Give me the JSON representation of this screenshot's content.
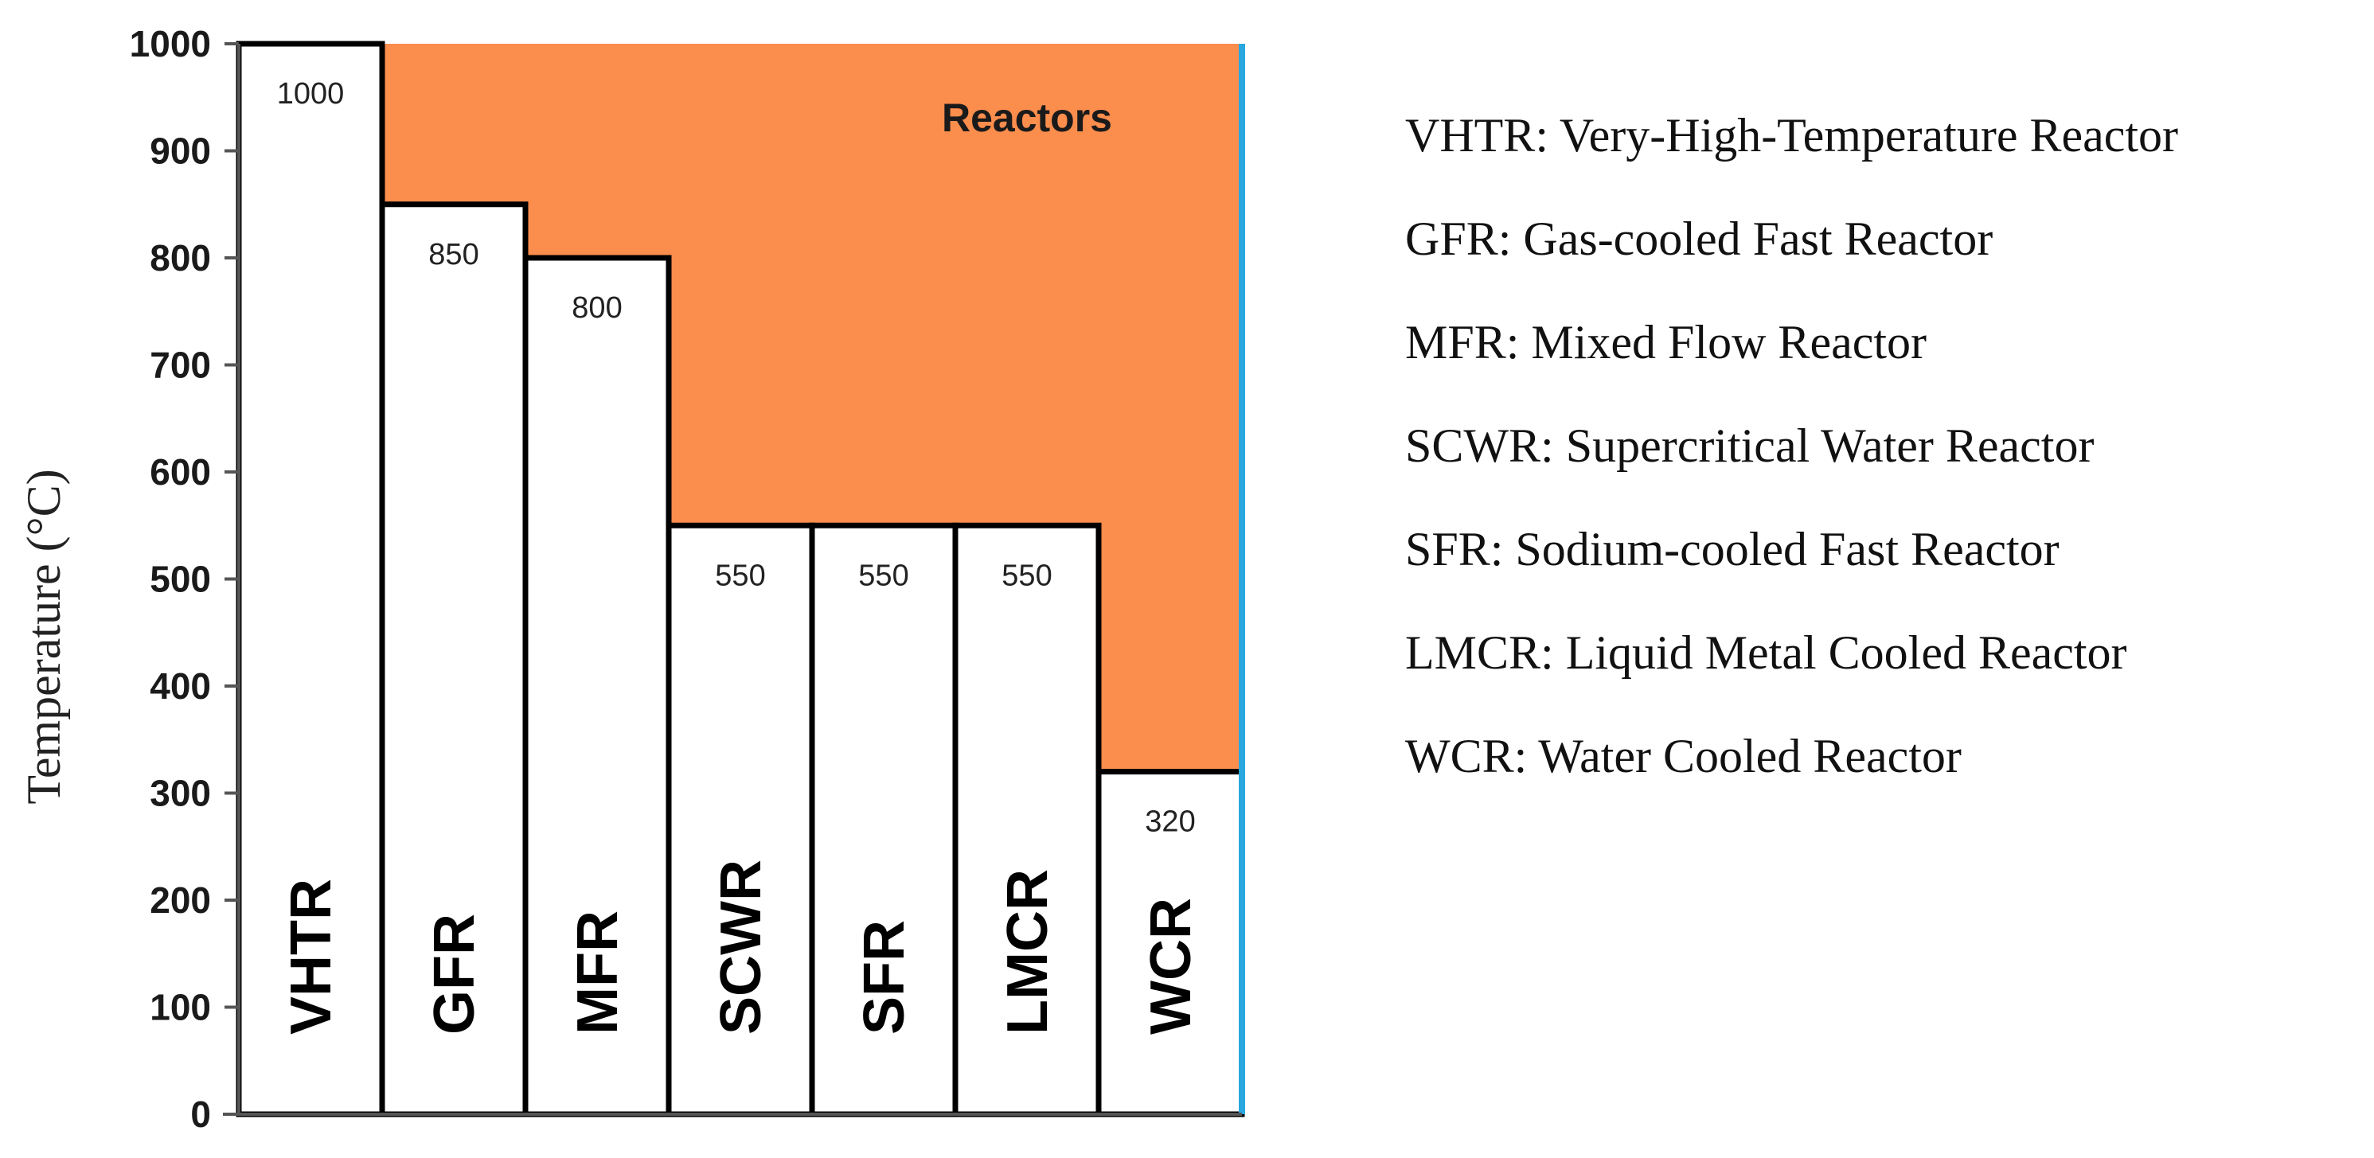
{
  "chart_data": {
    "type": "bar",
    "categories": [
      "VHTR",
      "GFR",
      "MFR",
      "SCWR",
      "SFR",
      "LMCR",
      "WCR"
    ],
    "values": [
      1000,
      850,
      800,
      550,
      550,
      550,
      320
    ],
    "data_labels": [
      "1000",
      "850",
      "800",
      "550",
      "550",
      "550",
      "320"
    ],
    "ylabel": "Temperature (°C)",
    "ylim": [
      0,
      1000
    ],
    "yticks": [
      "0",
      "100",
      "200",
      "300",
      "400",
      "500",
      "600",
      "700",
      "800",
      "900",
      "1000"
    ],
    "grid": false,
    "region_label": "Reactors",
    "colors": {
      "region": "#fb8d4d",
      "bar": "#ffffff",
      "bar_edge": "#000000",
      "right_edge": "#29a8e0"
    },
    "legend": [
      "VHTR: Very-High-Temperature Reactor",
      "GFR: Gas-cooled Fast Reactor",
      "MFR: Mixed Flow Reactor",
      "SCWR: Supercritical Water Reactor",
      "SFR: Sodium-cooled Fast Reactor",
      "LMCR: Liquid Metal Cooled Reactor",
      "WCR: Water Cooled Reactor"
    ],
    "legend_position": "right"
  }
}
